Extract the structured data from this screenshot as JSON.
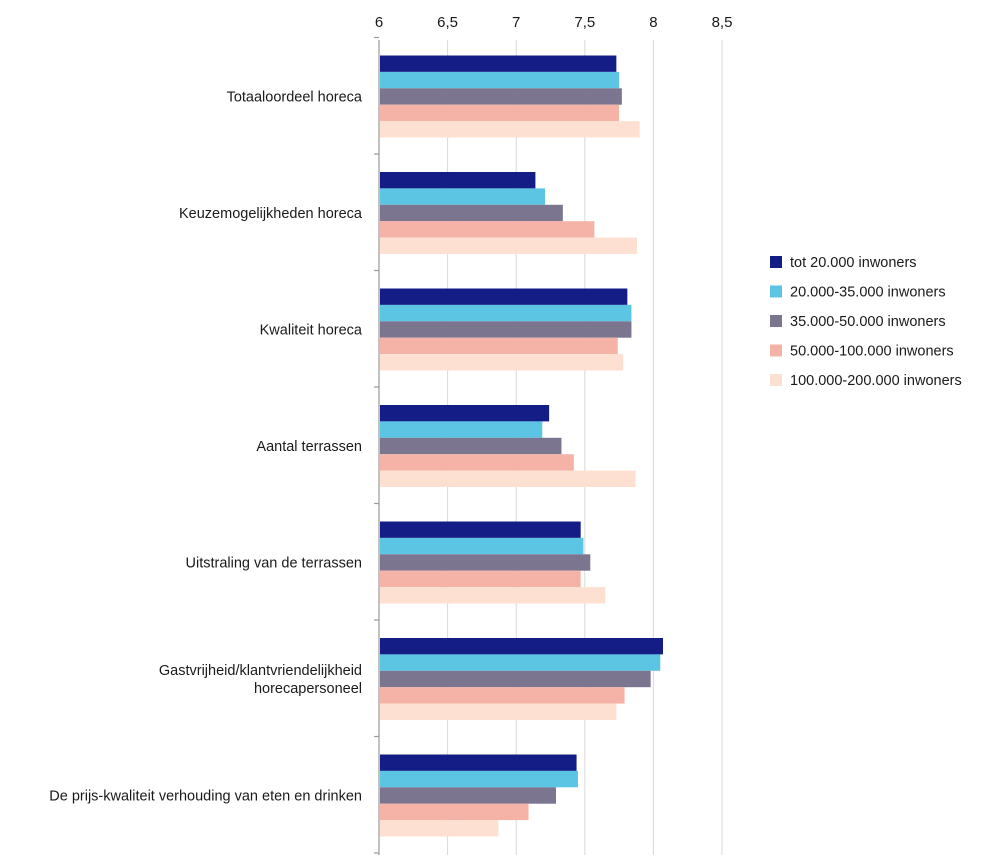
{
  "chart_data": {
    "type": "bar",
    "orientation": "horizontal",
    "title": "",
    "xlabel": "",
    "ylabel": "",
    "xlim": [
      6,
      8.5
    ],
    "xticks": [
      6,
      6.5,
      7,
      7.5,
      8,
      8.5
    ],
    "xtick_labels": [
      "6",
      "6,5",
      "7",
      "7,5",
      "8",
      "8,5"
    ],
    "grid": true,
    "legend_position": "right",
    "categories": [
      [
        "Totaaloordeel horeca"
      ],
      [
        "Keuzemogelijkheden horeca"
      ],
      [
        "Kwaliteit horeca"
      ],
      [
        "Aantal terrassen"
      ],
      [
        "Uitstraling van de terrassen"
      ],
      [
        "Gastvrijheid/klantvriendelijkheid",
        "horecapersoneel"
      ],
      [
        "De prijs-kwaliteit verhouding van eten en drinken"
      ]
    ],
    "series": [
      {
        "name": "tot 20.000 inwoners",
        "color": "#141c86",
        "values": [
          7.73,
          7.14,
          7.81,
          7.24,
          7.47,
          8.07,
          7.44
        ]
      },
      {
        "name": "20.000-35.000 inwoners",
        "color": "#5bc5e3",
        "values": [
          7.75,
          7.21,
          7.84,
          7.19,
          7.49,
          8.05,
          7.45
        ]
      },
      {
        "name": "35.000-50.000 inwoners",
        "color": "#7c7590",
        "values": [
          7.77,
          7.34,
          7.84,
          7.33,
          7.54,
          7.98,
          7.29
        ]
      },
      {
        "name": "50.000-100.000 inwoners",
        "color": "#f5b3a7",
        "values": [
          7.75,
          7.57,
          7.74,
          7.42,
          7.47,
          7.79,
          7.09
        ]
      },
      {
        "name": "100.000-200.000 inwoners",
        "color": "#fde0d2",
        "values": [
          7.9,
          7.88,
          7.78,
          7.87,
          7.65,
          7.73,
          6.87
        ]
      }
    ]
  }
}
